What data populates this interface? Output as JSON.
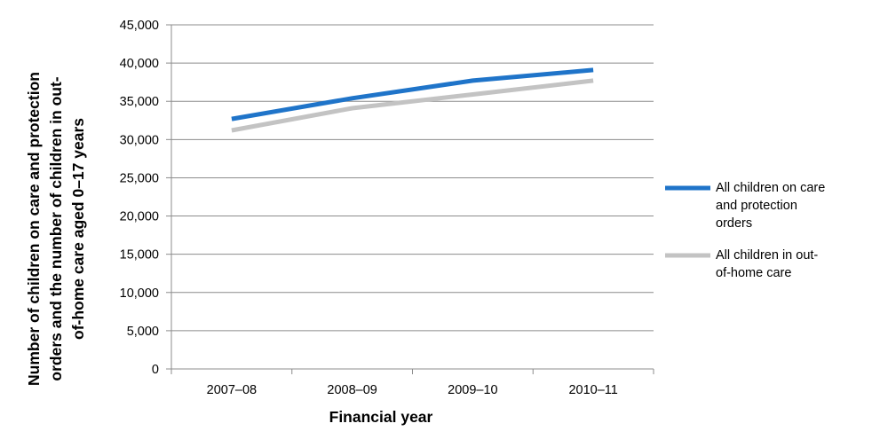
{
  "chart_data": {
    "type": "line",
    "categories": [
      "2007–08",
      "2008–09",
      "2009–10",
      "2010–11"
    ],
    "series": [
      {
        "name": "All children on care and protection orders",
        "values": [
          32700,
          35400,
          37700,
          39100
        ],
        "color": "#1f74c9"
      },
      {
        "name": "All children in out-of-home care",
        "values": [
          31200,
          34100,
          35900,
          37700
        ],
        "color": "#c3c3c3"
      }
    ],
    "xlabel": "Financial year",
    "ylabel_lines": [
      "Number of children on care and protection",
      "orders and the number of children in out-",
      "of-home care aged 0–17 years"
    ],
    "ylim": [
      0,
      45000
    ],
    "yticks": [
      0,
      5000,
      10000,
      15000,
      20000,
      25000,
      30000,
      35000,
      40000,
      45000
    ],
    "ytick_labels": [
      "0",
      "5,000",
      "10,000",
      "15,000",
      "20,000",
      "25,000",
      "30,000",
      "35,000",
      "40,000",
      "45,000"
    ],
    "legend": {
      "position": "right",
      "entries": [
        {
          "lines": [
            "All children on care",
            "and protection",
            "orders"
          ]
        },
        {
          "lines": [
            "All children in out-",
            "of-home care"
          ]
        }
      ]
    },
    "grid": true
  }
}
